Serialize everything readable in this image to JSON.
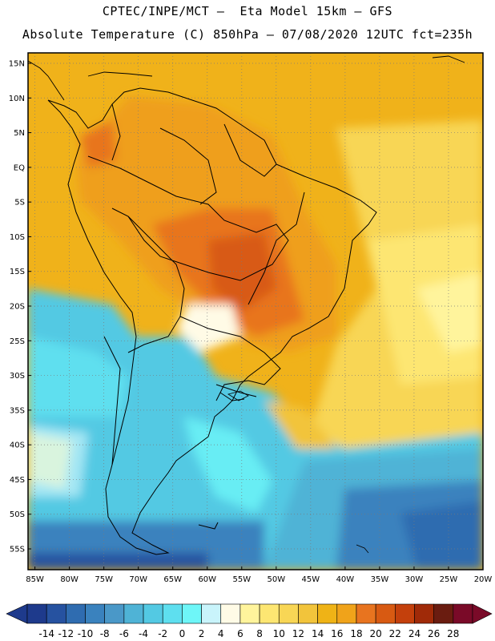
{
  "header": {
    "line1": "CPTEC/INPE/MCT –  Eta Model 15km – GFS",
    "line2": "Absolute Temperature (C) 850hPa – 07/08/2020 12UTC fct=235h"
  },
  "map": {
    "lat_labels": [
      "15N",
      "10N",
      "5N",
      "EQ",
      "5S",
      "10S",
      "15S",
      "20S",
      "25S",
      "30S",
      "35S",
      "40S",
      "45S",
      "50S",
      "55S"
    ],
    "lat_values": [
      15,
      10,
      5,
      0,
      -5,
      -10,
      -15,
      -20,
      -25,
      -30,
      -35,
      -40,
      -45,
      -50,
      -55
    ],
    "lon_labels": [
      "85W",
      "80W",
      "75W",
      "70W",
      "65W",
      "60W",
      "55W",
      "50W",
      "45W",
      "40W",
      "35W",
      "30W",
      "25W",
      "20W"
    ],
    "lon_values": [
      -85,
      -80,
      -75,
      -70,
      -65,
      -60,
      -55,
      -50,
      -45,
      -40,
      -35,
      -30,
      -25,
      -20
    ],
    "lat_range": [
      -58,
      16.5
    ],
    "lon_range": [
      -86,
      -20
    ],
    "grid": "dotted"
  },
  "colorbar": {
    "levels": [
      "-14",
      "-12",
      "-10",
      "-8",
      "-6",
      "-4",
      "-2",
      "0",
      "2",
      "4",
      "6",
      "8",
      "10",
      "12",
      "14",
      "16",
      "18",
      "20",
      "22",
      "24",
      "26",
      "28"
    ],
    "colors": [
      "#1e3a8c",
      "#2652a0",
      "#2f6cb0",
      "#3a82be",
      "#4a98c8",
      "#4fb3d6",
      "#53c9e3",
      "#5edfef",
      "#6ef6f8",
      "#c9f4fb",
      "#fffbe6",
      "#fff49c",
      "#fde672",
      "#f8d655",
      "#f2c43b",
      "#efb316",
      "#f0a31a",
      "#e8741f",
      "#d85a12",
      "#c4400c",
      "#a02a08",
      "#6a1c10",
      "#7a0a28"
    ]
  }
}
